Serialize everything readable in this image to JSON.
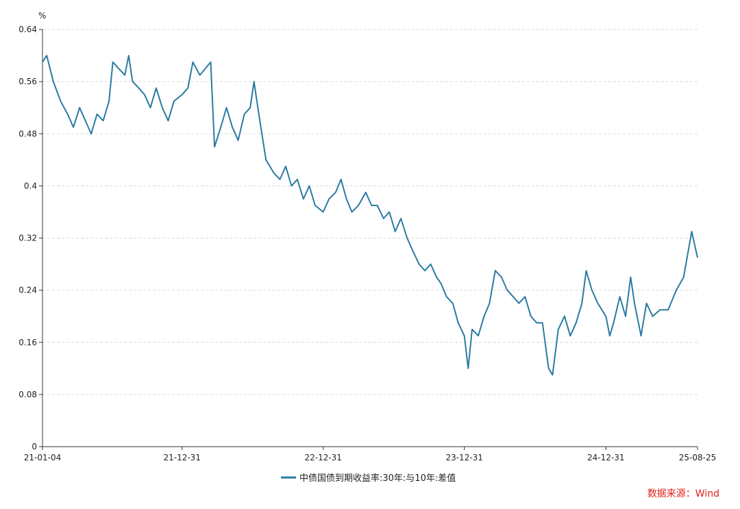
{
  "chart_data": {
    "type": "line",
    "title": "",
    "xlabel": "",
    "ylabel": "",
    "unit_label": "%",
    "ylim": [
      0,
      0.64
    ],
    "y_ticks": [
      "0",
      "0.08",
      "0.16",
      "0.24",
      "0.32",
      "0.4",
      "0.48",
      "0.56",
      "0.64"
    ],
    "x_ticks": [
      "21-01-04",
      "21-12-31",
      "22-12-31",
      "23-12-31",
      "24-12-31",
      "25-08-25"
    ],
    "grid": "horizontal-dashed",
    "legend_position": "bottom-center",
    "series": [
      {
        "name": "中债国债到期收益率:30年:与10年:差值",
        "color": "#2a7aa1",
        "points": [
          [
            "2021-01-04",
            0.59
          ],
          [
            "2021-01-15",
            0.6
          ],
          [
            "2021-02-01",
            0.56
          ],
          [
            "2021-02-20",
            0.53
          ],
          [
            "2021-03-10",
            0.51
          ],
          [
            "2021-03-25",
            0.49
          ],
          [
            "2021-04-10",
            0.52
          ],
          [
            "2021-04-25",
            0.5
          ],
          [
            "2021-05-10",
            0.48
          ],
          [
            "2021-05-25",
            0.51
          ],
          [
            "2021-06-10",
            0.5
          ],
          [
            "2021-06-25",
            0.53
          ],
          [
            "2021-07-05",
            0.59
          ],
          [
            "2021-07-20",
            0.58
          ],
          [
            "2021-08-05",
            0.57
          ],
          [
            "2021-08-15",
            0.6
          ],
          [
            "2021-08-25",
            0.56
          ],
          [
            "2021-09-10",
            0.55
          ],
          [
            "2021-09-25",
            0.54
          ],
          [
            "2021-10-10",
            0.52
          ],
          [
            "2021-10-25",
            0.55
          ],
          [
            "2021-11-10",
            0.52
          ],
          [
            "2021-11-25",
            0.5
          ],
          [
            "2021-12-10",
            0.53
          ],
          [
            "2021-12-31",
            0.54
          ],
          [
            "2022-01-15",
            0.55
          ],
          [
            "2022-01-28",
            0.59
          ],
          [
            "2022-02-15",
            0.57
          ],
          [
            "2022-03-01",
            0.58
          ],
          [
            "2022-03-15",
            0.59
          ],
          [
            "2022-03-25",
            0.46
          ],
          [
            "2022-04-10",
            0.49
          ],
          [
            "2022-04-25",
            0.52
          ],
          [
            "2022-05-10",
            0.49
          ],
          [
            "2022-05-25",
            0.47
          ],
          [
            "2022-06-10",
            0.51
          ],
          [
            "2022-06-25",
            0.52
          ],
          [
            "2022-07-05",
            0.56
          ],
          [
            "2022-07-20",
            0.5
          ],
          [
            "2022-08-05",
            0.44
          ],
          [
            "2022-08-25",
            0.42
          ],
          [
            "2022-09-10",
            0.41
          ],
          [
            "2022-09-25",
            0.43
          ],
          [
            "2022-10-10",
            0.4
          ],
          [
            "2022-10-25",
            0.41
          ],
          [
            "2022-11-10",
            0.38
          ],
          [
            "2022-11-25",
            0.4
          ],
          [
            "2022-12-10",
            0.37
          ],
          [
            "2022-12-31",
            0.36
          ],
          [
            "2023-01-15",
            0.38
          ],
          [
            "2023-02-01",
            0.39
          ],
          [
            "2023-02-15",
            0.41
          ],
          [
            "2023-03-01",
            0.38
          ],
          [
            "2023-03-15",
            0.36
          ],
          [
            "2023-04-01",
            0.37
          ],
          [
            "2023-04-20",
            0.39
          ],
          [
            "2023-05-05",
            0.37
          ],
          [
            "2023-05-20",
            0.37
          ],
          [
            "2023-06-05",
            0.35
          ],
          [
            "2023-06-20",
            0.36
          ],
          [
            "2023-07-05",
            0.33
          ],
          [
            "2023-07-20",
            0.35
          ],
          [
            "2023-08-05",
            0.32
          ],
          [
            "2023-08-20",
            0.3
          ],
          [
            "2023-09-05",
            0.28
          ],
          [
            "2023-09-20",
            0.27
          ],
          [
            "2023-10-05",
            0.28
          ],
          [
            "2023-10-20",
            0.26
          ],
          [
            "2023-11-01",
            0.25
          ],
          [
            "2023-11-15",
            0.23
          ],
          [
            "2023-12-01",
            0.22
          ],
          [
            "2023-12-15",
            0.19
          ],
          [
            "2023-12-31",
            0.17
          ],
          [
            "2024-01-10",
            0.12
          ],
          [
            "2024-01-20",
            0.18
          ],
          [
            "2024-02-05",
            0.17
          ],
          [
            "2024-02-20",
            0.2
          ],
          [
            "2024-03-05",
            0.22
          ],
          [
            "2024-03-20",
            0.27
          ],
          [
            "2024-04-05",
            0.26
          ],
          [
            "2024-04-20",
            0.24
          ],
          [
            "2024-05-05",
            0.23
          ],
          [
            "2024-05-20",
            0.22
          ],
          [
            "2024-06-05",
            0.23
          ],
          [
            "2024-06-20",
            0.2
          ],
          [
            "2024-07-05",
            0.19
          ],
          [
            "2024-07-20",
            0.19
          ],
          [
            "2024-08-05",
            0.12
          ],
          [
            "2024-08-15",
            0.11
          ],
          [
            "2024-08-30",
            0.18
          ],
          [
            "2024-09-15",
            0.2
          ],
          [
            "2024-09-30",
            0.17
          ],
          [
            "2024-10-15",
            0.19
          ],
          [
            "2024-10-30",
            0.22
          ],
          [
            "2024-11-10",
            0.27
          ],
          [
            "2024-11-25",
            0.24
          ],
          [
            "2024-12-10",
            0.22
          ],
          [
            "2024-12-31",
            0.2
          ],
          [
            "2025-01-10",
            0.17
          ],
          [
            "2025-01-20",
            0.19
          ],
          [
            "2025-02-05",
            0.23
          ],
          [
            "2025-02-20",
            0.2
          ],
          [
            "2025-03-05",
            0.26
          ],
          [
            "2025-03-15",
            0.22
          ],
          [
            "2025-04-01",
            0.17
          ],
          [
            "2025-04-15",
            0.22
          ],
          [
            "2025-05-01",
            0.2
          ],
          [
            "2025-05-20",
            0.21
          ],
          [
            "2025-06-10",
            0.21
          ],
          [
            "2025-07-01",
            0.24
          ],
          [
            "2025-07-20",
            0.26
          ],
          [
            "2025-08-10",
            0.33
          ],
          [
            "2025-08-25",
            0.29
          ]
        ]
      }
    ]
  },
  "source_text": "数据来源：Wind"
}
